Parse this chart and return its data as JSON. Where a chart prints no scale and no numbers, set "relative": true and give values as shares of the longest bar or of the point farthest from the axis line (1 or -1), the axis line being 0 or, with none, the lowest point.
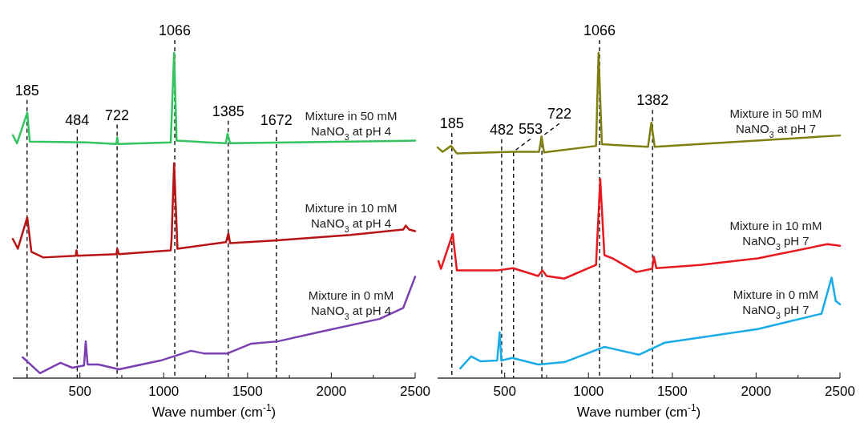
{
  "chart_data": [
    {
      "type": "line",
      "relative": true,
      "xlabel": "Wave number (cm$^{-1}$)",
      "xlim": [
        100,
        2500
      ],
      "xticks": [
        500,
        {
          "value": 750,
          "label": null
        },
        1000,
        {
          "value": 1250,
          "label": null
        },
        1500,
        {
          "value": 1750,
          "label": null
        },
        2000,
        {
          "value": 2250,
          "label": null
        },
        2500
      ],
      "legend": false,
      "grid": false,
      "line_style": "solid",
      "marker": "none",
      "series": [
        {
          "name": "Mixture in 50 mM\nNaNO$_{3}$ at pH 4",
          "color": "#33c45e",
          "x": [
            100,
            125,
            186,
            201,
            541,
            718,
            723,
            728,
            1042,
            1062,
            1077,
            1371,
            1381,
            1396,
            2500
          ],
          "values": [
            0.747,
            0.722,
            0.816,
            0.727,
            0.725,
            0.72,
            0.74,
            0.72,
            0.725,
            1.0,
            0.73,
            0.722,
            0.752,
            0.722,
            0.73
          ]
        },
        {
          "name": "Mixture in 10 mM\nNaNO$_{3}$ at pH 4",
          "color": "#b81414",
          "x": [
            100,
            130,
            186,
            211,
            282,
            475,
            480,
            485,
            718,
            723,
            733,
            1042,
            1047,
            1062,
            1082,
            1371,
            1386,
            1396,
            1659,
            2115,
            2429,
            2444,
            2464,
            2500
          ],
          "values": [
            0.428,
            0.398,
            0.494,
            0.388,
            0.371,
            0.376,
            0.393,
            0.376,
            0.381,
            0.398,
            0.381,
            0.393,
            0.428,
            0.661,
            0.398,
            0.418,
            0.445,
            0.415,
            0.423,
            0.44,
            0.457,
            0.469,
            0.457,
            0.452
          ]
        },
        {
          "name": "Mixture in 0 mM\nNaNO$_{3}$ at pH 4",
          "color": "#7a3fb0",
          "x": [
            159,
            262,
            384,
            454,
            525,
            535,
            546,
            611,
            733,
            981,
            1163,
            1239,
            1381,
            1523,
            1680,
            1938,
            2287,
            2429,
            2500
          ],
          "values": [
            0.064,
            0.015,
            0.047,
            0.032,
            0.039,
            0.113,
            0.042,
            0.042,
            0.027,
            0.054,
            0.084,
            0.076,
            0.076,
            0.106,
            0.113,
            0.143,
            0.182,
            0.216,
            0.312
          ]
        }
      ],
      "ref_lines": [
        {
          "axis": "x",
          "value": 185,
          "label": "185",
          "line_style": "dashed",
          "color": "#000000"
        },
        {
          "axis": "x",
          "value": 484,
          "label": "484",
          "line_style": "dashed",
          "color": "#000000"
        },
        {
          "axis": "x",
          "value": 722,
          "label": "722",
          "line_style": "dashed",
          "color": "#000000"
        },
        {
          "axis": "x",
          "value": 1066,
          "label": "1066",
          "line_style": "dashed",
          "color": "#000000"
        },
        {
          "axis": "x",
          "value": 1385,
          "label": "1385",
          "line_style": "dashed",
          "color": "#000000"
        },
        {
          "axis": "x",
          "value": 1672,
          "label": "1672",
          "line_style": "dashed",
          "color": "#000000"
        }
      ]
    },
    {
      "type": "line",
      "relative": true,
      "xlabel": "Wave number (cm$^{-1}$)",
      "xlim": [
        100,
        2500
      ],
      "xticks": [
        500,
        {
          "value": 750,
          "label": null
        },
        1000,
        {
          "value": 1250,
          "label": null
        },
        1500,
        {
          "value": 1750,
          "label": null
        },
        2000,
        {
          "value": 2250,
          "label": null
        },
        2500
      ],
      "legend": false,
      "grid": false,
      "line_style": "solid",
      "marker": "none",
      "series": [
        {
          "name": "Mixture in 50 mM\nNaNO$_{3}$ at pH 7",
          "color": "#808010",
          "x": [
            100,
            130,
            180,
            215,
            545,
            705,
            720,
            735,
            1045,
            1060,
            1080,
            1355,
            1375,
            1395,
            2500
          ],
          "values": [
            0.709,
            0.696,
            0.714,
            0.691,
            0.696,
            0.696,
            0.743,
            0.694,
            0.714,
            1.0,
            0.719,
            0.711,
            0.785,
            0.711,
            0.746
          ]
        },
        {
          "name": "Mixture in 10 mM\nNaNO$_{3}$ pH 7",
          "color": "#e8191e",
          "x": [
            105,
            120,
            190,
            215,
            455,
            550,
            700,
            725,
            750,
            855,
            1045,
            1070,
            1095,
            1145,
            1285,
            1380,
            1390,
            1405,
            1665,
            2010,
            2425,
            2500
          ],
          "values": [
            0.36,
            0.336,
            0.444,
            0.331,
            0.331,
            0.338,
            0.314,
            0.331,
            0.314,
            0.306,
            0.348,
            0.612,
            0.378,
            0.368,
            0.326,
            0.336,
            0.373,
            0.338,
            0.348,
            0.368,
            0.412,
            0.407
          ]
        },
        {
          "name": "Mixture in 0 mM\nNaNO$_{3}$ pH 7",
          "color": "#1aace6",
          "x": [
            235,
            300,
            355,
            455,
            470,
            480,
            545,
            700,
            855,
            1095,
            1300,
            1455,
            1750,
            2010,
            2390,
            2450,
            2475,
            2500
          ],
          "values": [
            0.03,
            0.067,
            0.052,
            0.054,
            0.141,
            0.054,
            0.062,
            0.042,
            0.049,
            0.096,
            0.072,
            0.109,
            0.131,
            0.151,
            0.198,
            0.309,
            0.237,
            0.227
          ]
        }
      ],
      "ref_lines": [
        {
          "axis": "x",
          "value": 185,
          "label": "185",
          "line_style": "dashed",
          "color": "#000000"
        },
        {
          "axis": "x",
          "value": 482,
          "label": "482",
          "line_style": "dashed",
          "color": "#000000"
        },
        {
          "axis": "x",
          "value": 553,
          "label": "553",
          "line_style": "dashed",
          "color": "#000000"
        },
        {
          "axis": "x",
          "value": 722,
          "label": "722",
          "line_style": "dashed",
          "color": "#000000"
        },
        {
          "axis": "x",
          "value": 1066,
          "label": "1066",
          "line_style": "dashed",
          "color": "#000000"
        },
        {
          "axis": "x",
          "value": 1382,
          "label": "1382",
          "line_style": "dashed",
          "color": "#000000"
        }
      ]
    }
  ]
}
